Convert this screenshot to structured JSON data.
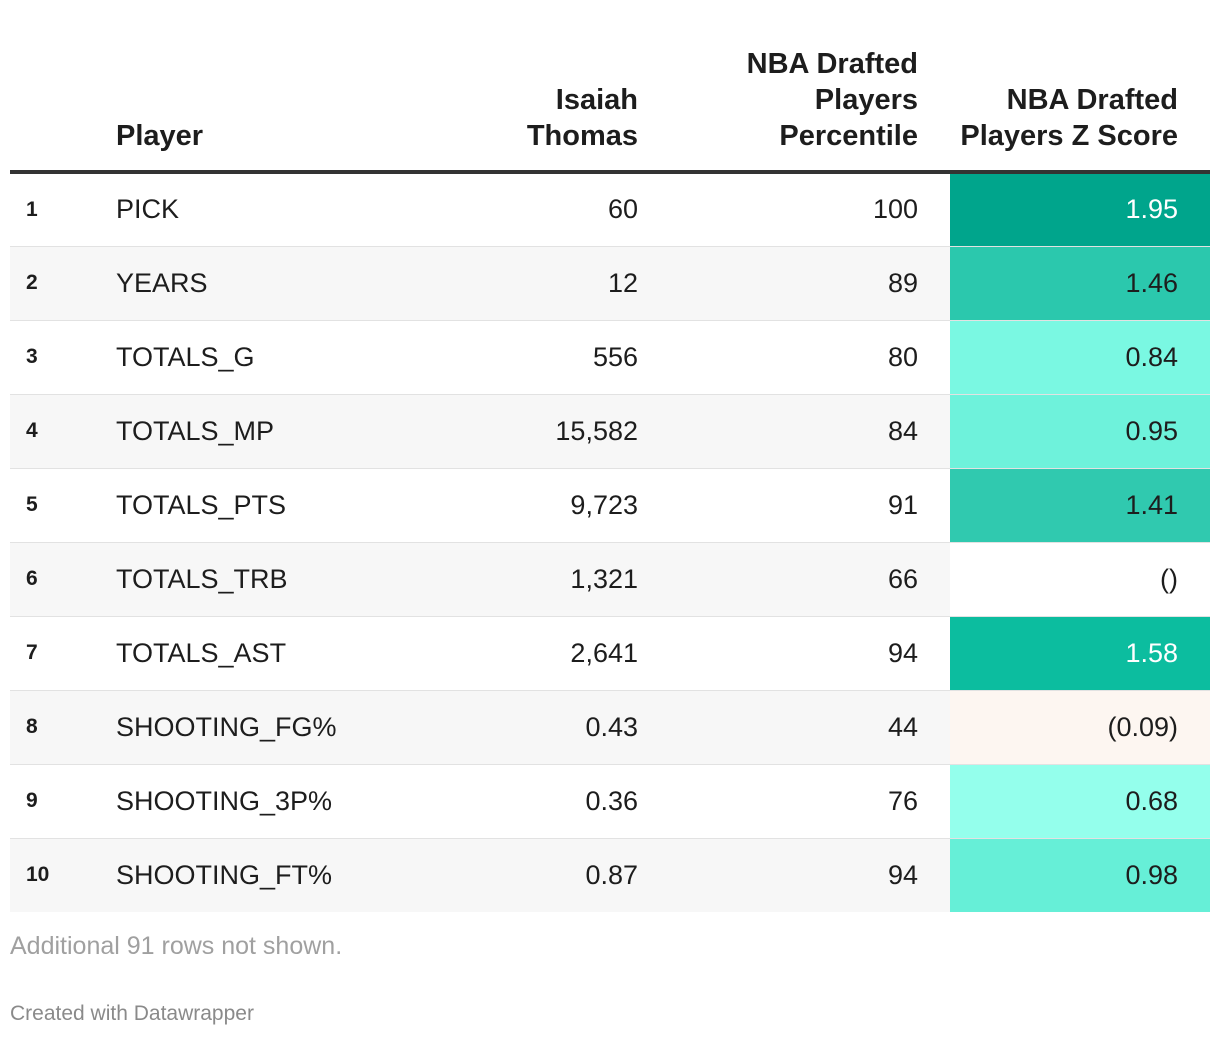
{
  "chart_data": {
    "type": "table",
    "columns": [
      "",
      "Player",
      "Isaiah Thomas",
      "NBA Drafted Players Percentile",
      "NBA Drafted Players Z Score"
    ],
    "rows": [
      {
        "rank": "1",
        "player": "PICK",
        "isaiah_thomas": "60",
        "percentile": "100",
        "z_score": "1.95",
        "z_value": 1.95
      },
      {
        "rank": "2",
        "player": "YEARS",
        "isaiah_thomas": "12",
        "percentile": "89",
        "z_score": "1.46",
        "z_value": 1.46
      },
      {
        "rank": "3",
        "player": "TOTALS_G",
        "isaiah_thomas": "556",
        "percentile": "80",
        "z_score": "0.84",
        "z_value": 0.84
      },
      {
        "rank": "4",
        "player": "TOTALS_MP",
        "isaiah_thomas": "15,582",
        "percentile": "84",
        "z_score": "0.95",
        "z_value": 0.95
      },
      {
        "rank": "5",
        "player": "TOTALS_PTS",
        "isaiah_thomas": "9,723",
        "percentile": "91",
        "z_score": "1.41",
        "z_value": 1.41
      },
      {
        "rank": "6",
        "player": "TOTALS_TRB",
        "isaiah_thomas": "1,321",
        "percentile": "66",
        "z_score": "()",
        "z_value": 0
      },
      {
        "rank": "7",
        "player": "TOTALS_AST",
        "isaiah_thomas": "2,641",
        "percentile": "94",
        "z_score": "1.58",
        "z_value": 1.58
      },
      {
        "rank": "8",
        "player": "SHOOTING_FG%",
        "isaiah_thomas": "0.43",
        "percentile": "44",
        "z_score": "(0.09)",
        "z_value": -0.09
      },
      {
        "rank": "9",
        "player": "SHOOTING_3P%",
        "isaiah_thomas": "0.36",
        "percentile": "76",
        "z_score": "0.68",
        "z_value": 0.68
      },
      {
        "rank": "10",
        "player": "SHOOTING_FT%",
        "isaiah_thomas": "0.87",
        "percentile": "94",
        "z_score": "0.98",
        "z_value": 0.98
      }
    ],
    "notes": "Additional 91 rows not shown.",
    "credit": "Created with Datawrapper"
  },
  "header": {
    "rank": "",
    "player": "Player",
    "thomas": "Isaiah Thomas",
    "percentile": "NBA Drafted Players Percentile",
    "z_score": "NBA Drafted Players Z Score"
  },
  "colors": {
    "z_scale": {
      "1.95": "#00a58c",
      "1.58": "#0cbd9f",
      "1.46": "#2bc8ad",
      "1.41": "#30c9af",
      "0.98": "#66efd7",
      "0.95": "#6ef2db",
      "0.84": "#7af8e2",
      "0.68": "#94ffec",
      "0": "#ffffff",
      "-0.09": "#fdf6f1"
    },
    "z_text_light": "#ffffff",
    "z_text_dark": "#1d1d1d"
  }
}
